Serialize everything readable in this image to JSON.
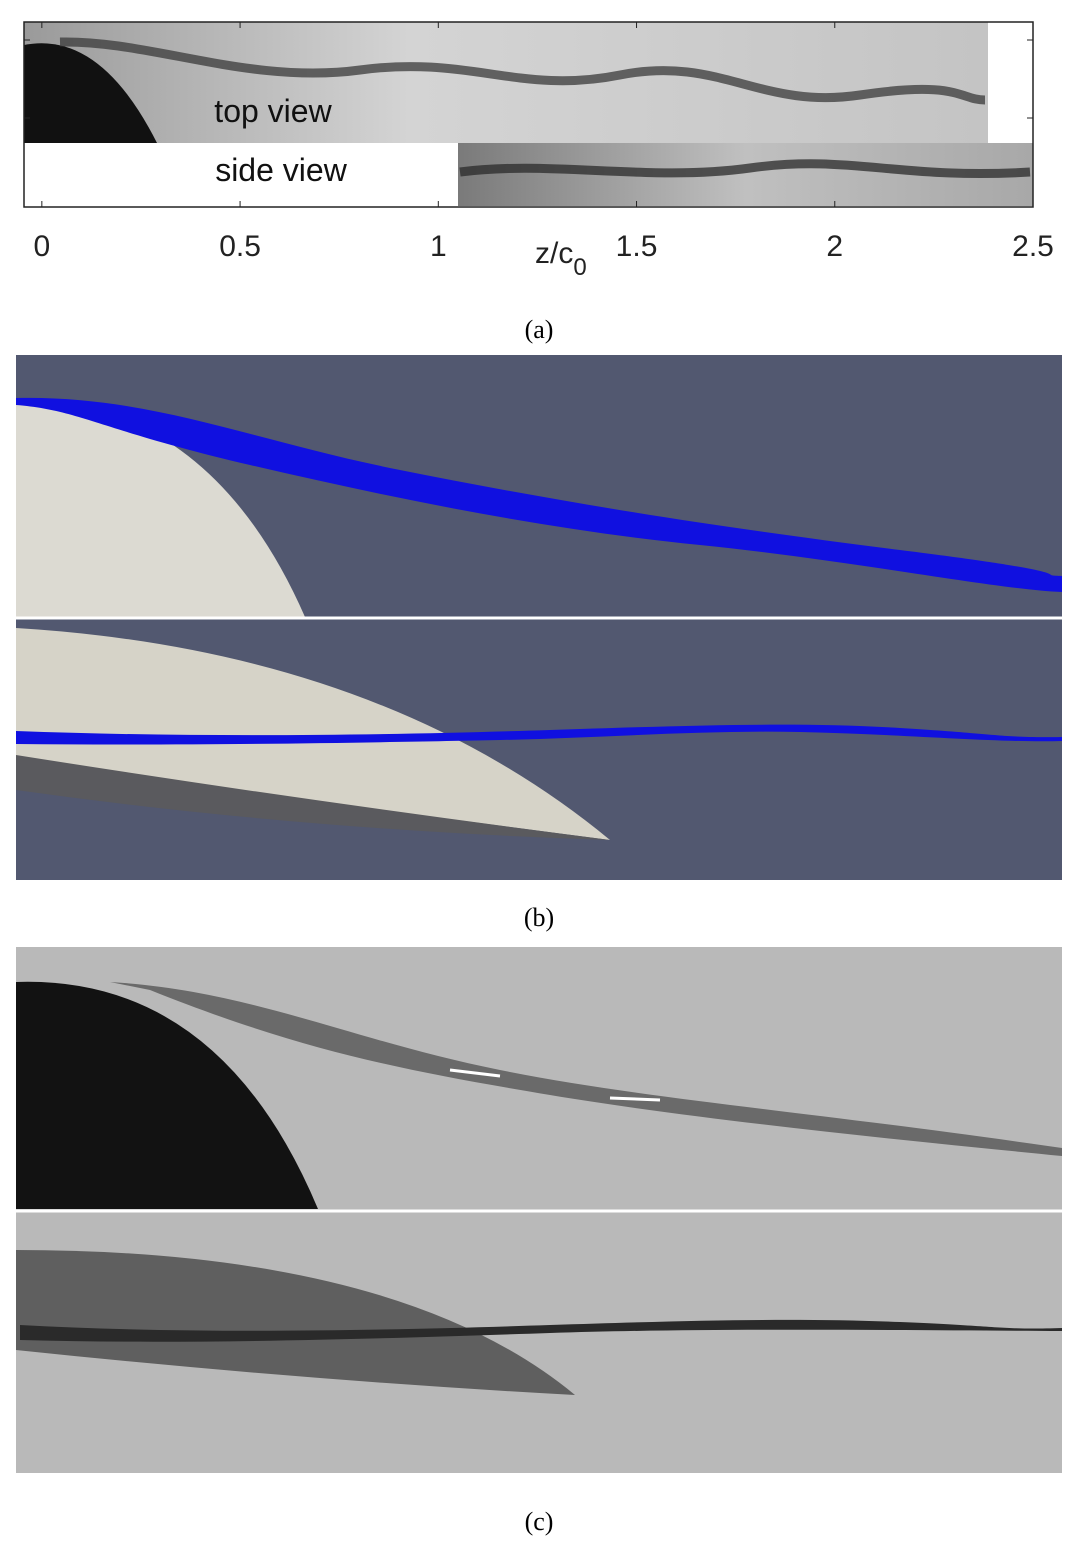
{
  "panel_a": {
    "top_label": "top view",
    "side_label": "side view",
    "x_axis": {
      "label": "z/c",
      "label_subscript": "0",
      "lim": [
        -0.045,
        2.5
      ],
      "ticks": [
        0,
        0.5,
        1,
        1.5,
        2,
        2.5
      ]
    },
    "caption": "(a)"
  },
  "panel_b": {
    "caption": "(b)"
  },
  "panel_c": {
    "caption": "(c)"
  }
}
